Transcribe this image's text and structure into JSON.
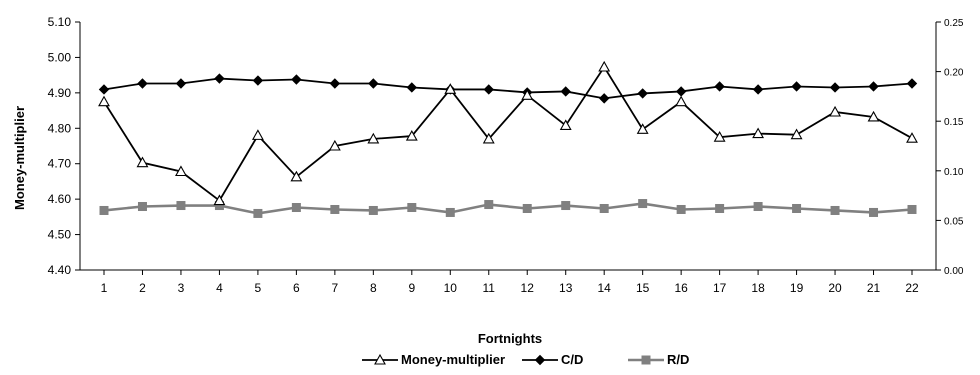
{
  "chart_data": {
    "type": "line",
    "title": "",
    "xlabel": "Fortnights",
    "ylabel": "Money-multiplier",
    "y2label": "",
    "categories": [
      "1",
      "2",
      "3",
      "4",
      "5",
      "6",
      "7",
      "8",
      "9",
      "10",
      "11",
      "12",
      "13",
      "14",
      "15",
      "16",
      "17",
      "18",
      "19",
      "20",
      "21",
      "22"
    ],
    "ylim": [
      4.4,
      5.1
    ],
    "yticks": [
      "4.40",
      "4.50",
      "4.60",
      "4.70",
      "4.80",
      "4.90",
      "5.00",
      "5.10"
    ],
    "y2lim": [
      0.0,
      0.25
    ],
    "y2ticks": [
      "0.00",
      "0.05",
      "0.10",
      "0.15",
      "0.20",
      "0.25"
    ],
    "legend_position": "bottom",
    "grid": false,
    "series": [
      {
        "name": "Money-multiplier",
        "axis": "left",
        "marker": "triangle-open",
        "color": "#000000",
        "values": [
          4.875,
          4.703,
          4.678,
          4.596,
          4.78,
          4.663,
          4.75,
          4.77,
          4.778,
          4.91,
          4.77,
          4.893,
          4.808,
          4.973,
          4.797,
          4.875,
          4.775,
          4.785,
          4.782,
          4.846,
          4.832,
          4.772
        ]
      },
      {
        "name": "C/D",
        "axis": "right",
        "marker": "diamond",
        "color": "#000000",
        "values": [
          0.182,
          0.188,
          0.188,
          0.193,
          0.191,
          0.192,
          0.188,
          0.188,
          0.184,
          0.182,
          0.182,
          0.179,
          0.18,
          0.173,
          0.178,
          0.18,
          0.185,
          0.182,
          0.185,
          0.184,
          0.185,
          0.188
        ]
      },
      {
        "name": "R/D",
        "axis": "right",
        "marker": "square",
        "color": "#808080",
        "values": [
          0.06,
          0.064,
          0.065,
          0.065,
          0.057,
          0.063,
          0.061,
          0.06,
          0.063,
          0.058,
          0.066,
          0.062,
          0.065,
          0.062,
          0.067,
          0.061,
          0.062,
          0.064,
          0.062,
          0.06,
          0.058,
          0.061
        ]
      }
    ]
  }
}
